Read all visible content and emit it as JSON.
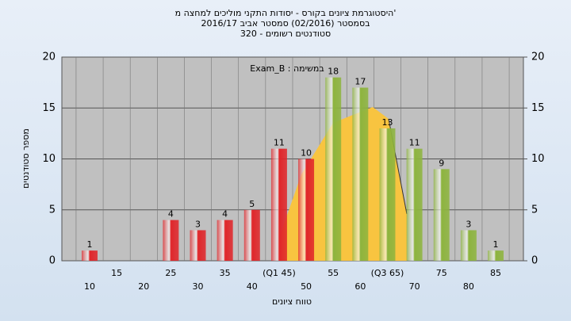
{
  "chart_data": {
    "type": "bar",
    "title": "'היסטוגרמת ציונים בקורס - יסודות התקני מוליכים למחצה מ",
    "subtitle": "בסמסטר  (02/2016)  סמסטר אביב 2016/17",
    "subtitle2": "סטודנטים רשומים - 320",
    "annotation": "במשימה : Exam_B",
    "x_label": "טווח ציונים",
    "y_label": "מספר סטודנטים",
    "categories": [
      "10",
      "15",
      "20",
      "25",
      "30",
      "35",
      "40",
      "(Q1 45)",
      "50",
      "55",
      "60",
      "(Q3 65)",
      "70",
      "75",
      "80",
      "85"
    ],
    "values": [
      1,
      null,
      null,
      4,
      3,
      4,
      5,
      11,
      10,
      18,
      17,
      13,
      11,
      9,
      3,
      1
    ],
    "colors": [
      "#e0262a",
      null,
      null,
      "#e0262a",
      "#e0262a",
      "#e0262a",
      "#e0262a",
      "#e0262a",
      "#e0262a",
      "#8db43e",
      "#8db43e",
      "#8db43e",
      "#8db43e",
      "#8db43e",
      "#8db43e",
      "#8db43e"
    ],
    "ylim": [
      0,
      20
    ],
    "yticks": [
      0,
      5,
      10,
      15,
      20
    ],
    "y2lim": [
      0,
      20
    ],
    "y2ticks": [
      0,
      5,
      10,
      15,
      20
    ],
    "grid": true
  }
}
